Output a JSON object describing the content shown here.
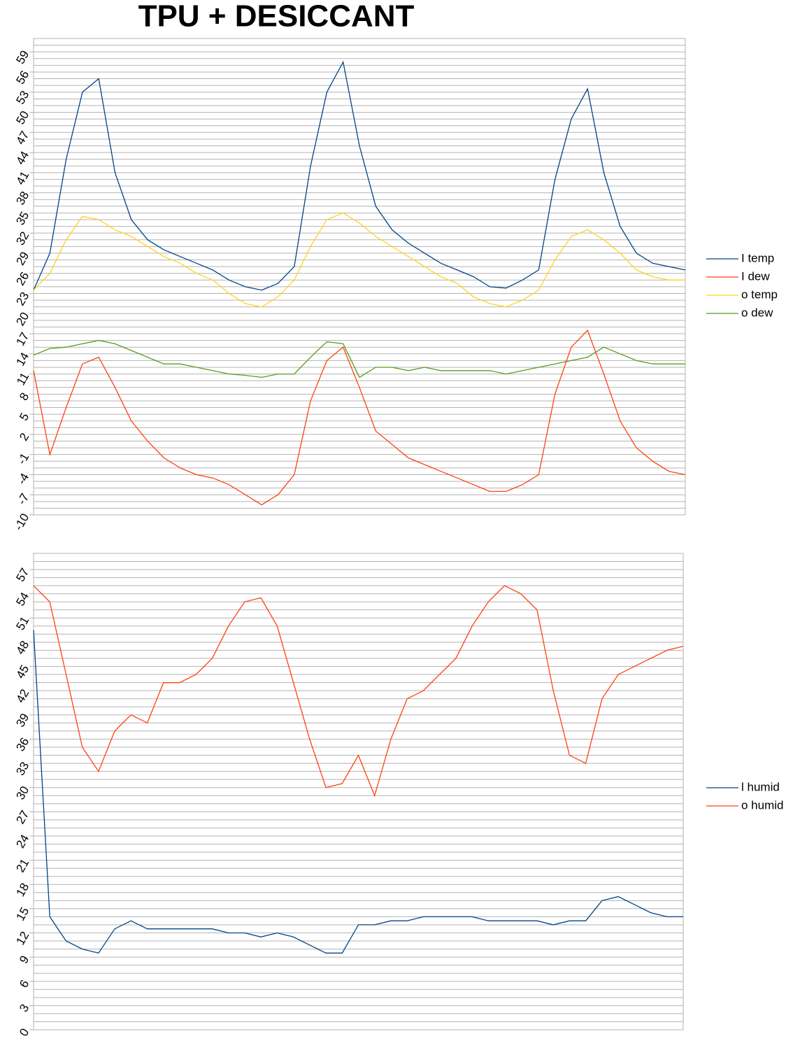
{
  "chart_data": [
    {
      "type": "line",
      "title": "TPU + DESICCANT",
      "ylim": [
        -10,
        61
      ],
      "yticks": [
        -10,
        -7,
        -4,
        -1,
        2,
        5,
        8,
        11,
        14,
        17,
        20,
        23,
        26,
        29,
        32,
        35,
        38,
        41,
        44,
        47,
        50,
        53,
        56,
        59
      ],
      "grid": true,
      "ygrid_step": 1,
      "legend": "right",
      "series": [
        {
          "name": "I temp",
          "color": "#004586",
          "values": [
            23.5,
            29,
            43,
            53,
            55,
            41,
            34,
            31,
            29.5,
            28.5,
            27.5,
            26.5,
            25,
            24,
            23.5,
            24.5,
            27,
            42,
            53,
            57.5,
            45,
            36,
            32.5,
            30.5,
            29,
            27.5,
            26.5,
            25.5,
            24,
            23.8,
            25,
            26.5,
            40,
            49,
            53.5,
            41,
            33,
            29,
            27.5,
            27,
            26.5
          ]
        },
        {
          "name": "I dew",
          "color": "#ff420e",
          "values": [
            11.5,
            -1,
            6,
            12.5,
            13.5,
            9,
            4,
            1,
            -1.5,
            -3,
            -4,
            -4.5,
            -5.5,
            -7,
            -8.5,
            -7,
            -4,
            7,
            13,
            15,
            9,
            2.5,
            0.5,
            -1.5,
            -2.5,
            -3.5,
            -4.5,
            -5.5,
            -6.5,
            -6.5,
            -5.5,
            -4,
            8,
            15,
            17.5,
            11,
            4,
            0,
            -2,
            -3.5,
            -4
          ]
        },
        {
          "name": "o temp",
          "color": "#ffd320",
          "values": [
            23.5,
            26,
            31,
            34.5,
            34,
            32.5,
            31.5,
            30,
            28.5,
            27.5,
            26,
            25,
            23,
            21.5,
            21,
            22.5,
            25,
            30,
            34,
            35,
            33.5,
            31.5,
            30,
            28.5,
            27,
            25.5,
            24.5,
            22.5,
            21.5,
            21,
            22,
            23.5,
            28,
            31.5,
            32.5,
            31,
            29,
            26.5,
            25.5,
            25,
            25
          ]
        },
        {
          "name": "o dew",
          "color": "#579d1c",
          "values": [
            13.8,
            14.8,
            15,
            15.5,
            16,
            15.5,
            14.5,
            13.5,
            12.5,
            12.5,
            12,
            11.5,
            11,
            10.8,
            10.5,
            11,
            11,
            13.5,
            15.8,
            15.5,
            10.5,
            12,
            12,
            11.5,
            12,
            11.5,
            11.5,
            11.5,
            11.5,
            11,
            11.5,
            12,
            12.5,
            13,
            13.5,
            15,
            14,
            13,
            12.5,
            12.5,
            12.5
          ]
        }
      ]
    },
    {
      "type": "line",
      "ylim": [
        0,
        59
      ],
      "yticks": [
        0,
        3,
        6,
        9,
        12,
        15,
        18,
        21,
        24,
        27,
        30,
        33,
        36,
        39,
        42,
        45,
        48,
        51,
        54,
        57
      ],
      "grid": true,
      "ygrid_step": 1,
      "legend": "right",
      "series": [
        {
          "name": "l humid",
          "color": "#004586",
          "values": [
            49.5,
            14,
            11,
            10,
            9.5,
            12.5,
            13.5,
            12.5,
            12.5,
            12.5,
            12.5,
            12.5,
            12,
            12,
            11.5,
            12,
            11.5,
            10.5,
            9.5,
            9.5,
            13,
            13,
            13.5,
            13.5,
            14,
            14,
            14,
            14,
            13.5,
            13.5,
            13.5,
            13.5,
            13,
            13.5,
            13.5,
            16,
            16.5,
            15.5,
            14.5,
            14,
            14
          ]
        },
        {
          "name": "o humid",
          "color": "#ff420e",
          "values": [
            55,
            53,
            44,
            35,
            32,
            37,
            39,
            38,
            43,
            43,
            44,
            46,
            50,
            53,
            53.5,
            50,
            43,
            36,
            30,
            30.5,
            34,
            29,
            36,
            41,
            42,
            44,
            46,
            50,
            53,
            55,
            54,
            52,
            42,
            34,
            33,
            41,
            44,
            45,
            46,
            47,
            47.5
          ]
        }
      ]
    }
  ]
}
